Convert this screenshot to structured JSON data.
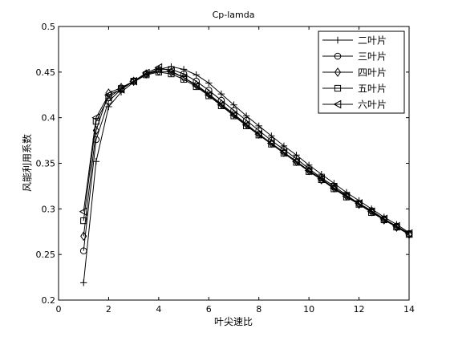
{
  "chart_data": {
    "type": "line",
    "title": "Cp-lamda",
    "xlabel": "叶尖速比",
    "ylabel": "风能利用系数",
    "xlim": [
      0,
      14
    ],
    "ylim": [
      0.2,
      0.5
    ],
    "xticks": [
      0,
      2,
      4,
      6,
      8,
      10,
      12,
      14
    ],
    "yticks": [
      0.2,
      0.25,
      0.3,
      0.35,
      0.4,
      0.45,
      0.5
    ],
    "xtick_labels": [
      "0",
      "2",
      "4",
      "6",
      "8",
      "10",
      "12",
      "14"
    ],
    "ytick_labels": [
      "0.2",
      "0.25",
      "0.3",
      "0.35",
      "0.4",
      "0.45",
      "0.5"
    ],
    "grid": false,
    "legend_position": "top-right",
    "x": [
      1,
      1.5,
      2,
      2.5,
      3,
      3.5,
      4,
      4.5,
      5,
      5.5,
      6,
      6.5,
      7,
      7.5,
      8,
      8.5,
      9,
      9.5,
      10,
      10.5,
      11,
      11.5,
      12,
      12.5,
      13,
      13.5,
      14
    ],
    "series": [
      {
        "name": "二叶片",
        "marker": "plus",
        "values": [
          0.219,
          0.352,
          0.412,
          0.428,
          0.439,
          0.447,
          0.453,
          0.456,
          0.453,
          0.447,
          0.438,
          0.426,
          0.414,
          0.402,
          0.391,
          0.38,
          0.369,
          0.359,
          0.348,
          0.338,
          0.328,
          0.318,
          0.309,
          0.3,
          0.291,
          0.283,
          0.274
        ]
      },
      {
        "name": "三叶片",
        "marker": "circle",
        "values": [
          0.254,
          0.376,
          0.418,
          0.431,
          0.44,
          0.448,
          0.453,
          0.453,
          0.448,
          0.44,
          0.43,
          0.419,
          0.408,
          0.397,
          0.386,
          0.375,
          0.365,
          0.355,
          0.344,
          0.334,
          0.325,
          0.315,
          0.306,
          0.298,
          0.289,
          0.281,
          0.273
        ]
      },
      {
        "name": "四叶片",
        "marker": "diamond",
        "values": [
          0.27,
          0.386,
          0.427,
          0.433,
          0.44,
          0.448,
          0.451,
          0.45,
          0.444,
          0.436,
          0.426,
          0.415,
          0.404,
          0.393,
          0.382,
          0.372,
          0.362,
          0.352,
          0.342,
          0.332,
          0.323,
          0.314,
          0.305,
          0.297,
          0.288,
          0.28,
          0.272
        ]
      },
      {
        "name": "五叶片",
        "marker": "square",
        "values": [
          0.287,
          0.396,
          0.422,
          0.432,
          0.44,
          0.447,
          0.45,
          0.448,
          0.442,
          0.434,
          0.424,
          0.413,
          0.402,
          0.391,
          0.381,
          0.371,
          0.361,
          0.351,
          0.341,
          0.332,
          0.322,
          0.313,
          0.305,
          0.296,
          0.288,
          0.28,
          0.272
        ]
      },
      {
        "name": "六叶片",
        "marker": "triangle-left",
        "values": [
          0.297,
          0.4,
          0.425,
          0.431,
          0.44,
          0.449,
          0.455,
          0.451,
          0.444,
          0.435,
          0.425,
          0.414,
          0.403,
          0.392,
          0.382,
          0.372,
          0.362,
          0.352,
          0.342,
          0.333,
          0.323,
          0.314,
          0.306,
          0.297,
          0.289,
          0.281,
          0.273
        ]
      }
    ]
  }
}
